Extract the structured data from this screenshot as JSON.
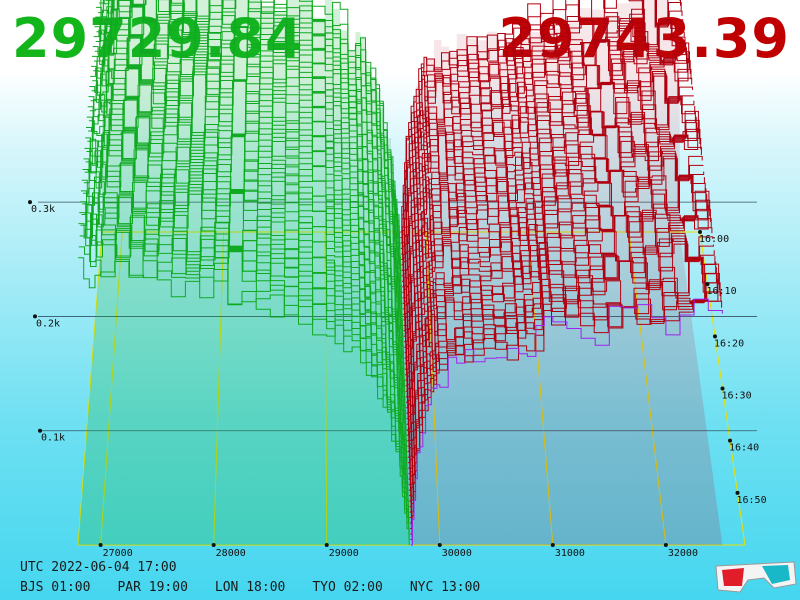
{
  "header": {
    "bid_price": "29729.84",
    "ask_price": "29743.39",
    "bid_color": "#12b51a",
    "ask_color": "#c00000"
  },
  "info": {
    "utc_label": "UTC 2022-06-04 17:00",
    "zones": [
      "BJS 01:00",
      "PAR 19:00",
      "LON 18:00",
      "TYO 02:00",
      "NYC 13:00"
    ]
  },
  "icons": {
    "glasses": "3d-glasses-icon"
  },
  "chart_data": {
    "type": "3d-depth-surface",
    "price_axis": {
      "ticks": [
        27000,
        28000,
        29000,
        30000,
        31000,
        32000
      ],
      "labels": [
        "27000",
        "28000",
        "29000",
        "30000",
        "31000",
        "32000"
      ],
      "range": [
        26800,
        32700
      ]
    },
    "volume_axis": {
      "ticks": [
        100,
        200,
        300
      ],
      "labels": [
        "0.1k",
        "0.2k",
        "0.3k"
      ],
      "range": [
        0,
        350
      ]
    },
    "time_axis": {
      "labels": [
        "16:00",
        "16:10",
        "16:20",
        "16:30",
        "16:40",
        "16:50"
      ],
      "range": [
        "16:00",
        "17:00"
      ]
    },
    "series": [
      {
        "side": "bid",
        "color": "#11aa22",
        "price": [
          26800,
          27000,
          27500,
          28000,
          28500,
          29000,
          29300,
          29500,
          29650,
          29729.84
        ],
        "cumulative_volume": [
          335,
          330,
          320,
          305,
          285,
          255,
          220,
          170,
          80,
          0
        ]
      },
      {
        "side": "ask",
        "color": "#b00010",
        "price": [
          29743.39,
          29800,
          29900,
          30000,
          30300,
          30700,
          31000,
          31500,
          32000,
          32500
        ],
        "cumulative_volume": [
          0,
          110,
          170,
          200,
          215,
          225,
          255,
          260,
          265,
          270
        ]
      }
    ],
    "grid": true,
    "legend": "none"
  }
}
